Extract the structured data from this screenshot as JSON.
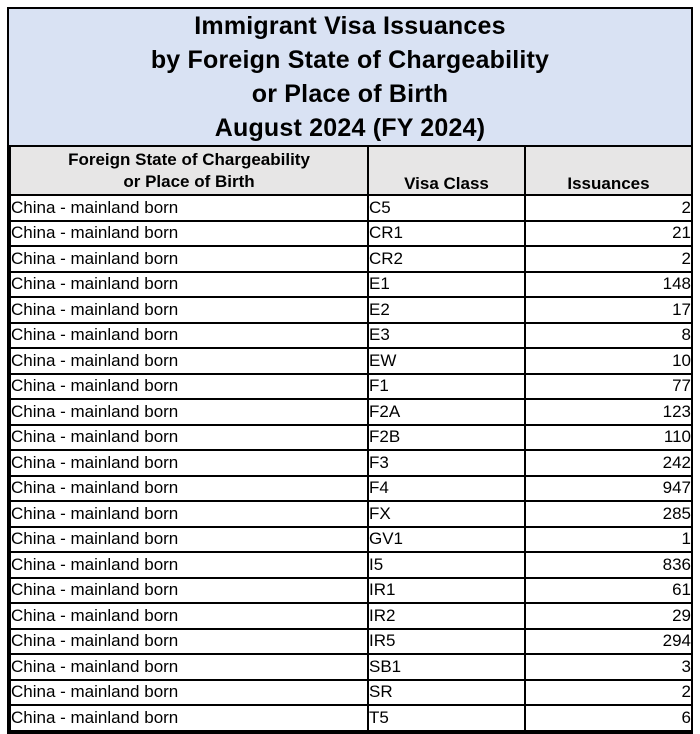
{
  "page": {
    "title_lines": [
      "Immigrant Visa Issuances",
      "by Foreign State of Chargeability",
      "or Place of Birth",
      "August 2024 (FY 2024)"
    ]
  },
  "colors": {
    "title_bg": "#d9e2f3",
    "header_bg": "#e7e6e6",
    "border": "#000000",
    "row_bg": "#ffffff",
    "text": "#000000"
  },
  "table": {
    "header": {
      "col1_lines": [
        "Foreign State of Chargeability",
        "or Place of Birth"
      ],
      "col2": "Visa Class",
      "col3": "Issuances"
    },
    "rows": [
      {
        "place": "China - mainland born",
        "visa_class": "C5",
        "issuances": "2"
      },
      {
        "place": "China - mainland born",
        "visa_class": "CR1",
        "issuances": "21"
      },
      {
        "place": "China - mainland born",
        "visa_class": "CR2",
        "issuances": "2"
      },
      {
        "place": "China - mainland born",
        "visa_class": "E1",
        "issuances": "148"
      },
      {
        "place": "China - mainland born",
        "visa_class": "E2",
        "issuances": "17"
      },
      {
        "place": "China - mainland born",
        "visa_class": "E3",
        "issuances": "8"
      },
      {
        "place": "China - mainland born",
        "visa_class": "EW",
        "issuances": "10"
      },
      {
        "place": "China - mainland born",
        "visa_class": "F1",
        "issuances": "77"
      },
      {
        "place": "China - mainland born",
        "visa_class": "F2A",
        "issuances": "123"
      },
      {
        "place": "China - mainland born",
        "visa_class": "F2B",
        "issuances": "110"
      },
      {
        "place": "China - mainland born",
        "visa_class": "F3",
        "issuances": "242"
      },
      {
        "place": "China - mainland born",
        "visa_class": "F4",
        "issuances": "947"
      },
      {
        "place": "China - mainland born",
        "visa_class": "FX",
        "issuances": "285"
      },
      {
        "place": "China - mainland born",
        "visa_class": "GV1",
        "issuances": "1"
      },
      {
        "place": "China - mainland born",
        "visa_class": "I5",
        "issuances": "836"
      },
      {
        "place": "China - mainland born",
        "visa_class": "IR1",
        "issuances": "61"
      },
      {
        "place": "China - mainland born",
        "visa_class": "IR2",
        "issuances": "29"
      },
      {
        "place": "China - mainland born",
        "visa_class": "IR5",
        "issuances": "294"
      },
      {
        "place": "China - mainland born",
        "visa_class": "SB1",
        "issuances": "3"
      },
      {
        "place": "China - mainland born",
        "visa_class": "SR",
        "issuances": "2"
      },
      {
        "place": "China - mainland born",
        "visa_class": "T5",
        "issuances": "6"
      }
    ]
  }
}
